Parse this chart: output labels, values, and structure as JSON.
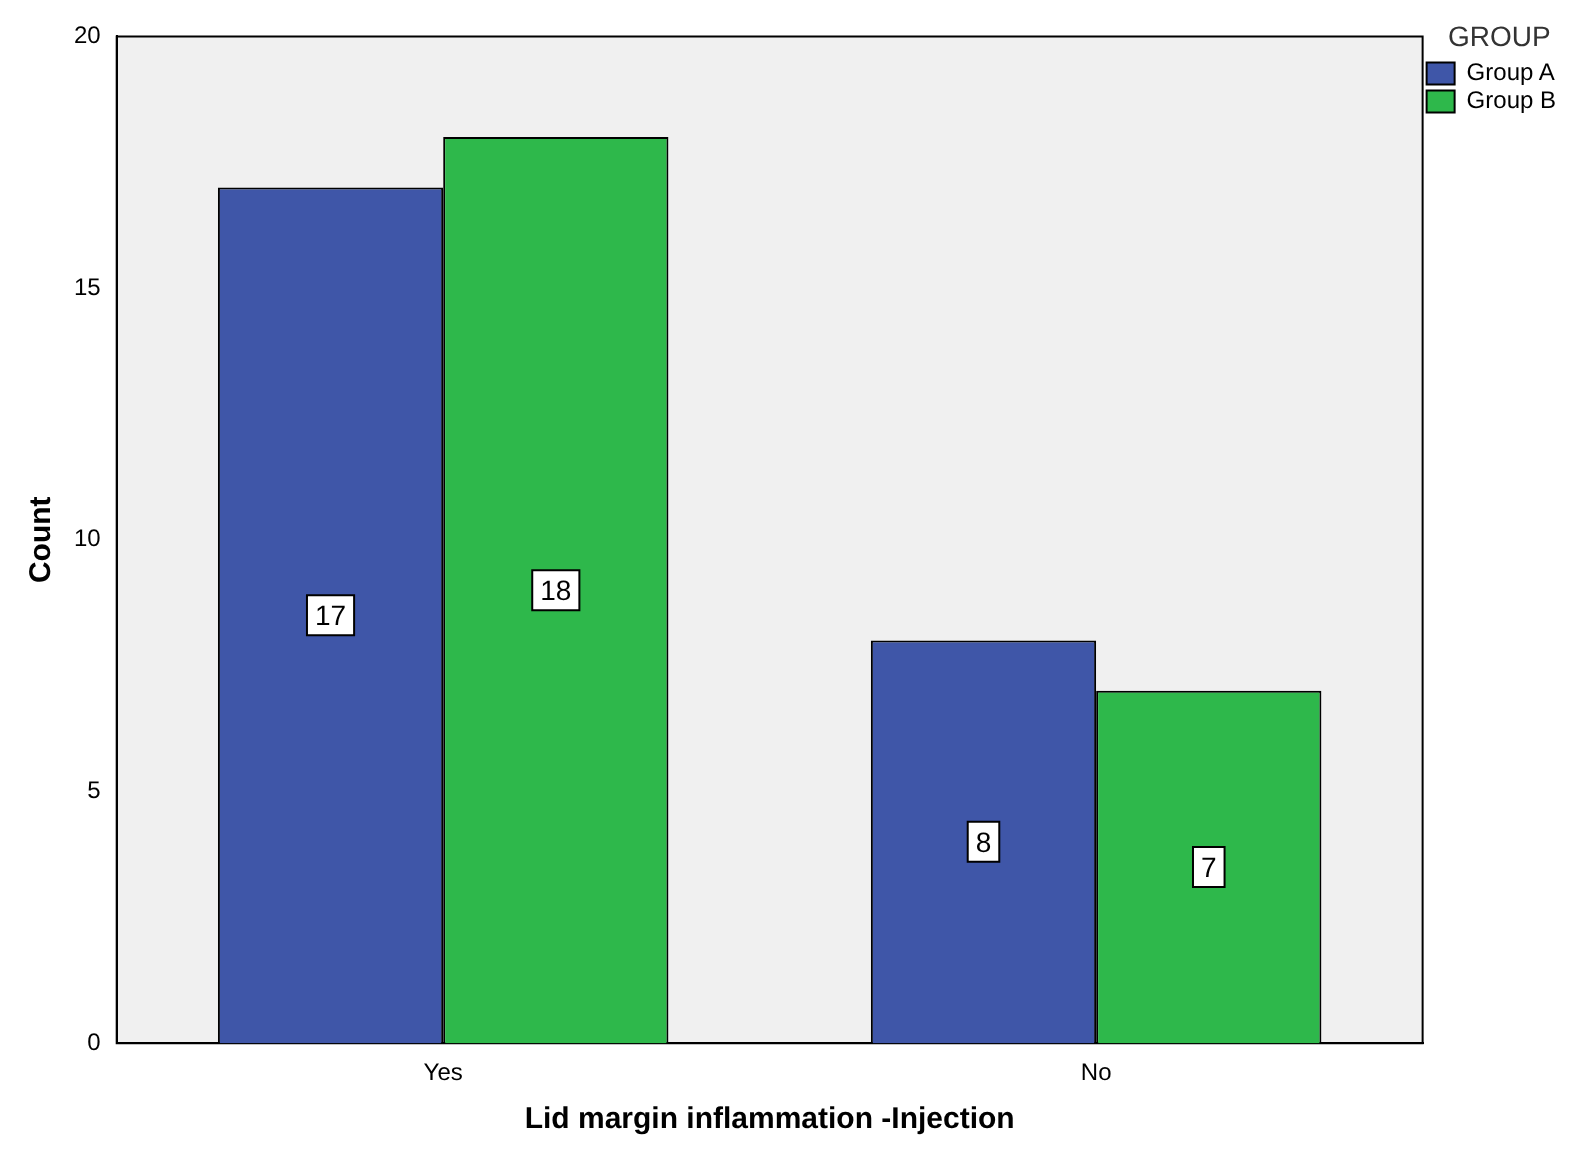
{
  "chart_data": {
    "type": "bar",
    "xlabel": "Lid margin inflammation -Injection",
    "ylabel": "Count",
    "legend_title": "GROUP",
    "categories": [
      "Yes",
      "No"
    ],
    "series": [
      {
        "name": "Group A",
        "color": "#3f56a8",
        "values": [
          17,
          8
        ]
      },
      {
        "name": "Group B",
        "color": "#2eb84b",
        "values": [
          18,
          7
        ]
      }
    ],
    "ylim": [
      0,
      20
    ],
    "yticks": [
      0,
      5,
      10,
      15,
      20
    ],
    "grid": false,
    "legend": "top right",
    "data_labels": true
  }
}
